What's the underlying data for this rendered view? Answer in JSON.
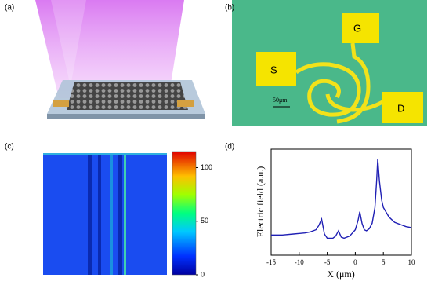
{
  "panel_labels": [
    "(a)",
    "(b)",
    "(c)",
    "(d)"
  ],
  "micrograph": {
    "source": "S",
    "gate": "G",
    "drain": "D",
    "scale_bar": "50μm"
  },
  "chart_data": [
    {
      "type": "colorbar",
      "zlim": [
        0,
        115
      ],
      "zticks": [
        0,
        50,
        100
      ]
    },
    {
      "type": "line",
      "xlabel": "X (μm)",
      "ylabel": "Electric field (a.u.)",
      "xlim": [
        -15,
        10
      ],
      "xticks": [
        -15,
        -10,
        -5,
        0,
        5,
        10
      ],
      "ylim": [
        0,
        1
      ],
      "x": [
        -15,
        -13,
        -11,
        -9,
        -8,
        -7,
        -6.5,
        -6,
        -5.5,
        -5,
        -4,
        -3.5,
        -3,
        -2.5,
        -2,
        -1,
        0,
        0.5,
        0.8,
        1.2,
        1.6,
        2,
        2.5,
        3,
        3.5,
        3.8,
        4,
        4.3,
        4.7,
        5,
        6,
        7,
        8,
        9,
        10
      ],
      "series": [
        {
          "color": "#1f1fb4",
          "values": [
            0.19,
            0.19,
            0.2,
            0.21,
            0.22,
            0.24,
            0.28,
            0.34,
            0.2,
            0.16,
            0.16,
            0.18,
            0.23,
            0.17,
            0.16,
            0.18,
            0.24,
            0.33,
            0.41,
            0.3,
            0.24,
            0.23,
            0.25,
            0.3,
            0.45,
            0.7,
            0.91,
            0.7,
            0.52,
            0.45,
            0.36,
            0.31,
            0.29,
            0.27,
            0.26
          ]
        }
      ]
    }
  ]
}
